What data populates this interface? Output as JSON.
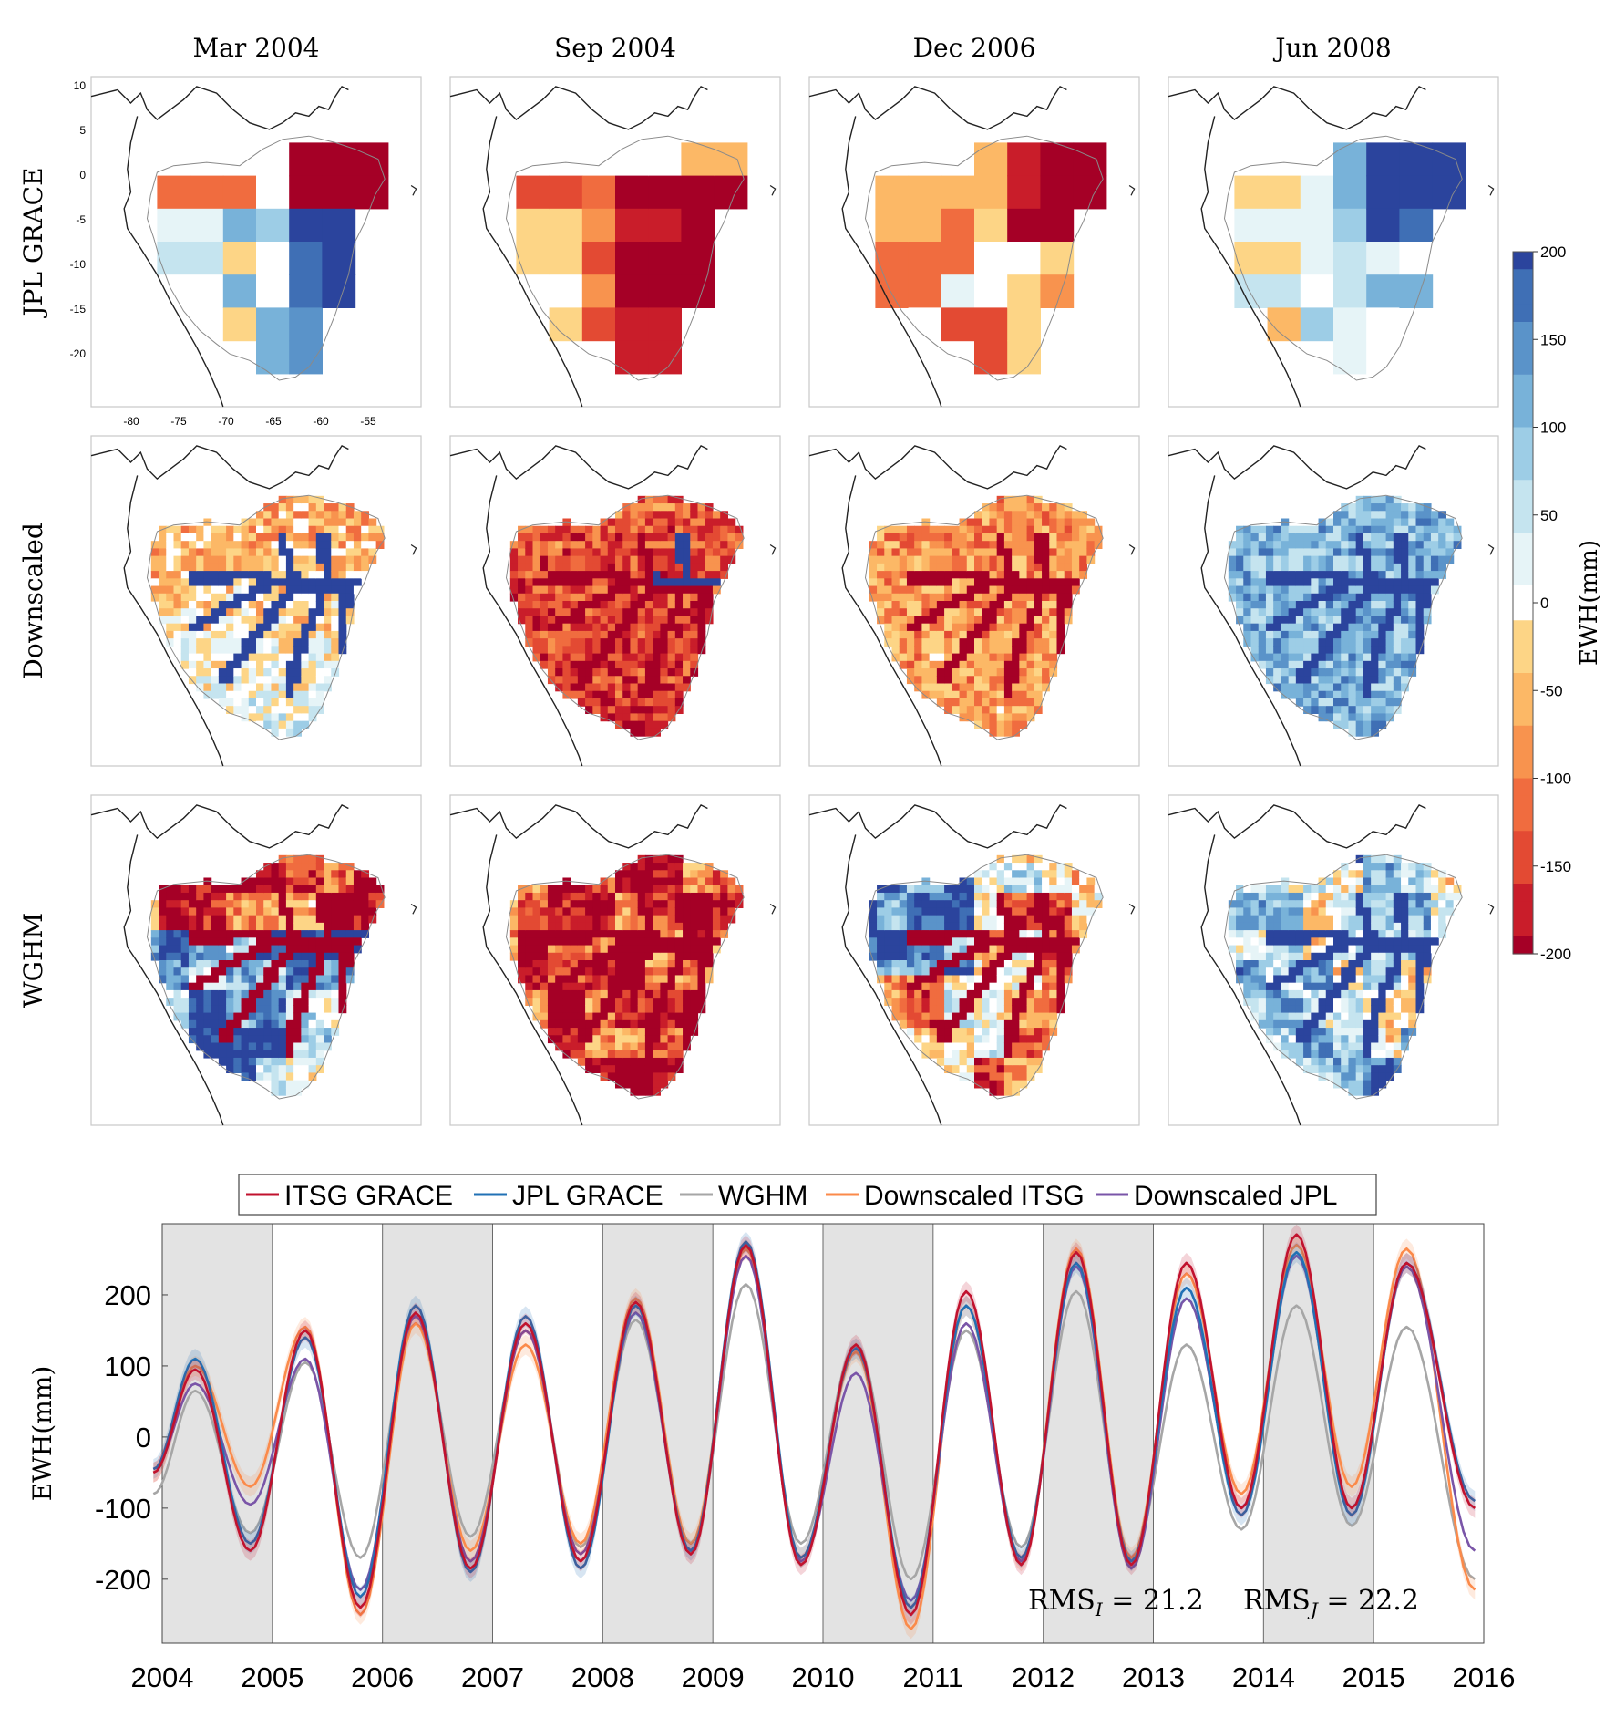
{
  "colors": {
    "diverging_negative_to_positive": [
      "#a50026",
      "#c91d2a",
      "#e34a33",
      "#f06c3f",
      "#f8934e",
      "#fcb866",
      "#fdd586",
      "#ffffff",
      "#e6f4f7",
      "#c5e4ef",
      "#9dcde6",
      "#78b2d9",
      "#5a93c9",
      "#3f6fb5",
      "#2b449d"
    ],
    "itsg": "#c1122e",
    "jpl": "#2171b5",
    "wghm": "#a6a6a6",
    "down_itsg": "#fb8a4a",
    "down_jpl": "#7a55a8",
    "band": "#e3e3e3"
  },
  "maps": {
    "columns": [
      "Mar 2004",
      "Sep 2004",
      "Dec 2006",
      "Jun 2008"
    ],
    "rows": [
      "JPL GRACE",
      "Downscaled",
      "WGHM"
    ],
    "x_ticks": [
      "-80",
      "-75",
      "-70",
      "-65",
      "-60",
      "-55"
    ],
    "y_ticks": [
      "10",
      "5",
      "0",
      "-5",
      "-10",
      "-15",
      "-20"
    ],
    "panel_mean_ewh_mm": [
      [
        -20,
        -185,
        -95,
        80
      ],
      [
        -30,
        -140,
        -80,
        110
      ],
      [
        -10,
        -150,
        -30,
        60
      ]
    ]
  },
  "colorbar": {
    "label": "EWH(mm)",
    "ticks": [
      "200",
      "150",
      "100",
      "50",
      "0",
      "-50",
      "-100",
      "-150",
      "-200"
    ],
    "range": [
      -200,
      200
    ]
  },
  "chart_data": {
    "type": "line",
    "title": "",
    "xlabel": "",
    "ylabel": "EWH(mm)",
    "xlim": [
      2004,
      2016
    ],
    "ylim": [
      -290,
      300
    ],
    "x_ticks": [
      "2004",
      "2005",
      "2006",
      "2007",
      "2008",
      "2009",
      "2010",
      "2011",
      "2012",
      "2013",
      "2014",
      "2015",
      "2016"
    ],
    "y_ticks": [
      "200",
      "100",
      "0",
      "-100",
      "-200"
    ],
    "shaded_years": [
      [
        2004,
        2005
      ],
      [
        2006,
        2007
      ],
      [
        2008,
        2009
      ],
      [
        2010,
        2011
      ],
      [
        2012,
        2013
      ],
      [
        2014,
        2015
      ]
    ],
    "legend": [
      "ITSG GRACE",
      "JPL GRACE",
      "WGHM",
      "Downscaled ITSG",
      "Downscaled JPL"
    ],
    "legend_position": "top",
    "annotations": [
      {
        "label": "RMS_I = 21.2",
        "base": "RMS",
        "sub": "I",
        "rest": " = 21.2"
      },
      {
        "label": "RMS_J = 22.2",
        "base": "RMS",
        "sub": "J",
        "rest": " = 22.2"
      }
    ],
    "series": [
      {
        "name": "ITSG GRACE",
        "peaks": [
          [
            2004.3,
            95
          ],
          [
            2005.3,
            150
          ],
          [
            2006.3,
            175
          ],
          [
            2007.3,
            160
          ],
          [
            2008.3,
            190
          ],
          [
            2009.3,
            270
          ],
          [
            2010.3,
            130
          ],
          [
            2011.3,
            205
          ],
          [
            2012.3,
            260
          ],
          [
            2013.3,
            245
          ],
          [
            2014.3,
            285
          ],
          [
            2015.3,
            245
          ]
        ],
        "troughs": [
          [
            2003.92,
            -50
          ],
          [
            2004.8,
            -160
          ],
          [
            2005.8,
            -240
          ],
          [
            2006.8,
            -185
          ],
          [
            2007.8,
            -175
          ],
          [
            2008.8,
            -165
          ],
          [
            2009.8,
            -180
          ],
          [
            2010.8,
            -250
          ],
          [
            2011.8,
            -180
          ],
          [
            2012.8,
            -180
          ],
          [
            2013.8,
            -100
          ],
          [
            2014.8,
            -100
          ],
          [
            2015.92,
            -100
          ]
        ]
      },
      {
        "name": "JPL GRACE",
        "peaks": [
          [
            2004.3,
            110
          ],
          [
            2005.3,
            140
          ],
          [
            2006.3,
            185
          ],
          [
            2007.3,
            170
          ],
          [
            2008.3,
            185
          ],
          [
            2009.3,
            275
          ],
          [
            2010.3,
            125
          ],
          [
            2011.3,
            185
          ],
          [
            2012.3,
            245
          ],
          [
            2013.3,
            210
          ],
          [
            2014.3,
            260
          ],
          [
            2015.3,
            245
          ]
        ],
        "troughs": [
          [
            2003.92,
            -45
          ],
          [
            2004.8,
            -150
          ],
          [
            2005.8,
            -225
          ],
          [
            2006.8,
            -190
          ],
          [
            2007.8,
            -185
          ],
          [
            2008.8,
            -160
          ],
          [
            2009.8,
            -170
          ],
          [
            2010.8,
            -240
          ],
          [
            2011.8,
            -170
          ],
          [
            2012.8,
            -175
          ],
          [
            2013.8,
            -110
          ],
          [
            2014.8,
            -110
          ],
          [
            2015.92,
            -90
          ]
        ]
      },
      {
        "name": "WGHM",
        "peaks": [
          [
            2004.3,
            65
          ],
          [
            2005.3,
            105
          ],
          [
            2006.3,
            160
          ],
          [
            2007.3,
            150
          ],
          [
            2008.3,
            165
          ],
          [
            2009.3,
            215
          ],
          [
            2010.3,
            130
          ],
          [
            2011.3,
            150
          ],
          [
            2012.3,
            205
          ],
          [
            2013.3,
            130
          ],
          [
            2014.3,
            185
          ],
          [
            2015.3,
            155
          ]
        ],
        "troughs": [
          [
            2003.92,
            -80
          ],
          [
            2004.8,
            -135
          ],
          [
            2005.8,
            -170
          ],
          [
            2006.8,
            -140
          ],
          [
            2007.8,
            -155
          ],
          [
            2008.8,
            -150
          ],
          [
            2009.8,
            -150
          ],
          [
            2010.8,
            -200
          ],
          [
            2011.8,
            -155
          ],
          [
            2012.8,
            -170
          ],
          [
            2013.8,
            -130
          ],
          [
            2014.8,
            -125
          ],
          [
            2015.92,
            -200
          ]
        ]
      },
      {
        "name": "Downscaled ITSG",
        "peaks": [
          [
            2004.3,
            100
          ],
          [
            2005.3,
            155
          ],
          [
            2006.3,
            160
          ],
          [
            2007.3,
            130
          ],
          [
            2008.3,
            195
          ],
          [
            2009.3,
            265
          ],
          [
            2010.3,
            120
          ],
          [
            2011.3,
            185
          ],
          [
            2012.3,
            265
          ],
          [
            2013.3,
            230
          ],
          [
            2014.3,
            270
          ],
          [
            2015.3,
            265
          ]
        ],
        "troughs": [
          [
            2003.92,
            -50
          ],
          [
            2004.8,
            -70
          ],
          [
            2005.8,
            -250
          ],
          [
            2006.8,
            -160
          ],
          [
            2007.8,
            -150
          ],
          [
            2008.8,
            -150
          ],
          [
            2009.8,
            -170
          ],
          [
            2010.8,
            -270
          ],
          [
            2011.8,
            -175
          ],
          [
            2012.8,
            -170
          ],
          [
            2013.8,
            -80
          ],
          [
            2014.8,
            -70
          ],
          [
            2015.92,
            -215
          ]
        ]
      },
      {
        "name": "Downscaled JPL",
        "peaks": [
          [
            2004.3,
            75
          ],
          [
            2005.3,
            110
          ],
          [
            2006.3,
            170
          ],
          [
            2007.3,
            150
          ],
          [
            2008.3,
            175
          ],
          [
            2009.3,
            255
          ],
          [
            2010.3,
            90
          ],
          [
            2011.3,
            160
          ],
          [
            2012.3,
            240
          ],
          [
            2013.3,
            195
          ],
          [
            2014.3,
            255
          ],
          [
            2015.3,
            240
          ]
        ],
        "troughs": [
          [
            2003.92,
            -45
          ],
          [
            2004.8,
            -95
          ],
          [
            2005.8,
            -215
          ],
          [
            2006.8,
            -175
          ],
          [
            2007.8,
            -165
          ],
          [
            2008.8,
            -160
          ],
          [
            2009.8,
            -175
          ],
          [
            2010.8,
            -230
          ],
          [
            2011.8,
            -175
          ],
          [
            2012.8,
            -185
          ],
          [
            2013.8,
            -100
          ],
          [
            2014.8,
            -100
          ],
          [
            2015.92,
            -160
          ]
        ]
      }
    ]
  }
}
